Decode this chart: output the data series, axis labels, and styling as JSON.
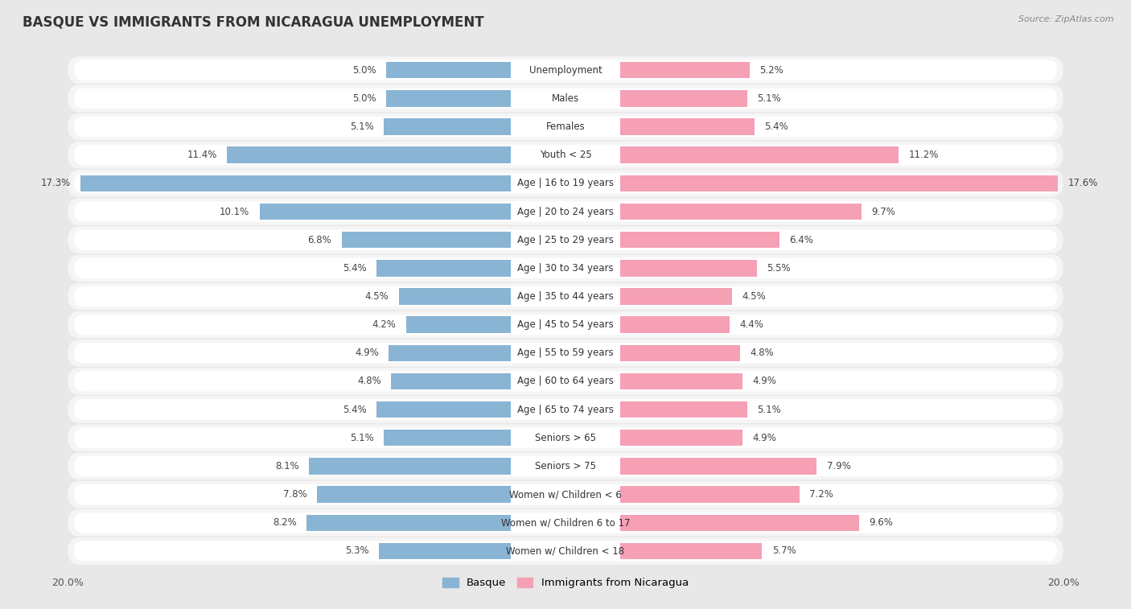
{
  "title": "Basque vs Immigrants from Nicaragua Unemployment",
  "source": "Source: ZipAtlas.com",
  "categories": [
    "Unemployment",
    "Males",
    "Females",
    "Youth < 25",
    "Age | 16 to 19 years",
    "Age | 20 to 24 years",
    "Age | 25 to 29 years",
    "Age | 30 to 34 years",
    "Age | 35 to 44 years",
    "Age | 45 to 54 years",
    "Age | 55 to 59 years",
    "Age | 60 to 64 years",
    "Age | 65 to 74 years",
    "Seniors > 65",
    "Seniors > 75",
    "Women w/ Children < 6",
    "Women w/ Children 6 to 17",
    "Women w/ Children < 18"
  ],
  "basque": [
    5.0,
    5.0,
    5.1,
    11.4,
    17.3,
    10.1,
    6.8,
    5.4,
    4.5,
    4.2,
    4.9,
    4.8,
    5.4,
    5.1,
    8.1,
    7.8,
    8.2,
    5.3
  ],
  "nicaragua": [
    5.2,
    5.1,
    5.4,
    11.2,
    17.6,
    9.7,
    6.4,
    5.5,
    4.5,
    4.4,
    4.8,
    4.9,
    5.1,
    4.9,
    7.9,
    7.2,
    9.6,
    5.7
  ],
  "basque_color": "#8ab4d4",
  "nicaragua_color": "#f5a0b5",
  "background_color": "#e8e8e8",
  "row_bg_color": "#f5f5f5",
  "bar_bg_color": "#ffffff",
  "label_bg_color": "#ffffff",
  "axis_limit": 20.0,
  "bar_height": 0.58,
  "legend_labels": [
    "Basque",
    "Immigrants from Nicaragua"
  ],
  "value_fontsize": 8.5,
  "label_fontsize": 8.5,
  "title_fontsize": 12
}
